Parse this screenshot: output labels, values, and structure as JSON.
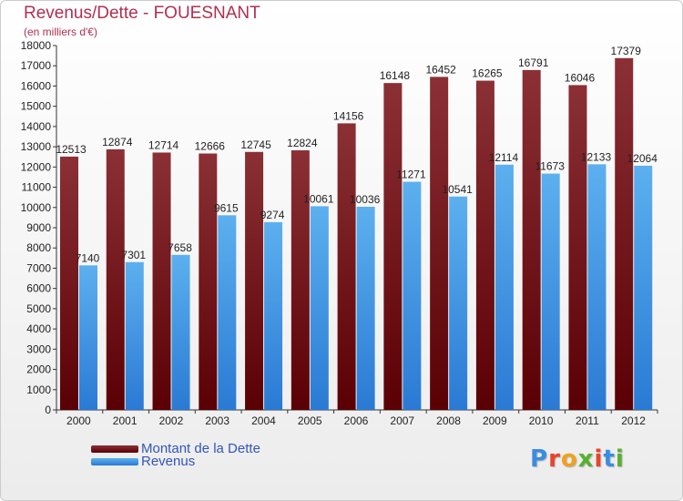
{
  "title": "Revenus/Dette - FOUESNANT",
  "subtitle": "(en milliers d'€)",
  "legend": {
    "debt_label": "Montant de la Dette",
    "revenue_label": "Revenus"
  },
  "logo_text": "Proxiti",
  "colors": {
    "title": "#b03050",
    "debt_top": "#8b3035",
    "debt_bottom": "#5a0005",
    "revenue_top": "#5cb0ee",
    "revenue_bottom": "#2a7ad4",
    "legend_text": "#3355bb"
  },
  "chart_data": {
    "type": "bar",
    "categories": [
      "2000",
      "2001",
      "2002",
      "2003",
      "2004",
      "2005",
      "2006",
      "2007",
      "2008",
      "2009",
      "2010",
      "2011",
      "2012"
    ],
    "series": [
      {
        "name": "Montant de la Dette",
        "values": [
          12513,
          12874,
          12714,
          12666,
          12745,
          12824,
          14156,
          16148,
          16452,
          16265,
          16791,
          16046,
          17379
        ]
      },
      {
        "name": "Revenus",
        "values": [
          7140,
          7301,
          7658,
          9615,
          9274,
          10061,
          10036,
          11271,
          10541,
          12114,
          11673,
          12133,
          12064
        ]
      }
    ],
    "ylim": [
      0,
      18000
    ],
    "yticks": [
      0,
      1000,
      2000,
      3000,
      4000,
      5000,
      6000,
      7000,
      8000,
      9000,
      10000,
      11000,
      12000,
      13000,
      14000,
      15000,
      16000,
      17000,
      18000
    ],
    "grid": false,
    "legend_position": "bottom-left"
  }
}
